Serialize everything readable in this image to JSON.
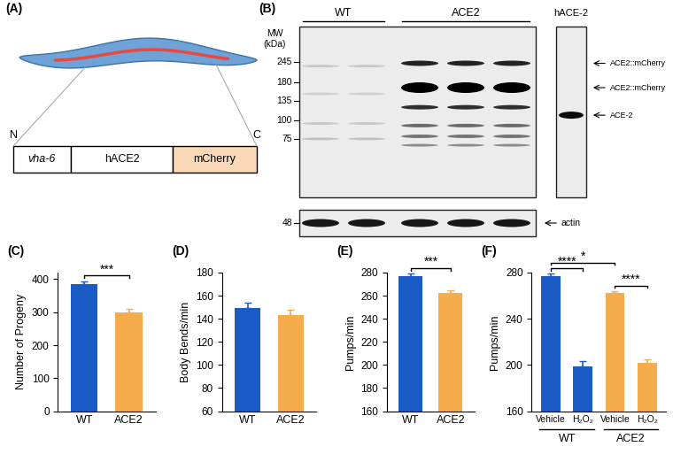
{
  "panel_A": {
    "label": "(A)",
    "construct": {
      "n_terminus": "N",
      "c_terminus": "C",
      "segments": [
        "vha-6",
        "hACE2",
        "mCherry"
      ]
    }
  },
  "panel_B": {
    "label": "(B)",
    "mw_axis_title": "MW\n(kDa)",
    "mw_markers": [
      245,
      180,
      135,
      100,
      75
    ],
    "loading_marker": 48,
    "lane_groups": [
      {
        "name": "WT",
        "lanes": 2
      },
      {
        "name": "ACE2",
        "lanes": 3
      }
    ],
    "reference_lane": "hACE-2",
    "band_labels": [
      "ACE2::mCherry",
      "ACE2::mCherry",
      "ACE-2"
    ],
    "loading_label": "actin"
  },
  "chart_data": [
    {
      "type": "bar",
      "title": "(C)",
      "categories": [
        "WT",
        "ACE2"
      ],
      "values": [
        385,
        298
      ],
      "errors": [
        9,
        11
      ],
      "colors": [
        "#1a5bc6",
        "#f4ac4d"
      ],
      "ylabel": "Number of Progeny",
      "ylim": [
        0,
        420
      ],
      "yticks": [
        0,
        100,
        200,
        300,
        400
      ],
      "annotations": [
        {
          "text": "***",
          "between": [
            0,
            1
          ]
        }
      ]
    },
    {
      "type": "bar",
      "title": "(D)",
      "categories": [
        "WT",
        "ACE2"
      ],
      "values": [
        149,
        143
      ],
      "errors": [
        5,
        5
      ],
      "colors": [
        "#1a5bc6",
        "#f4ac4d"
      ],
      "ylabel": "Body Bends/min",
      "ylim": [
        60,
        180
      ],
      "yticks": [
        60,
        80,
        100,
        120,
        140,
        160,
        180
      ]
    },
    {
      "type": "bar",
      "title": "(E)",
      "categories": [
        "WT",
        "ACE2"
      ],
      "values": [
        277,
        262
      ],
      "errors": [
        2,
        3
      ],
      "colors": [
        "#1a5bc6",
        "#f4ac4d"
      ],
      "ylabel": "Pumps/min",
      "ylim": [
        160,
        280
      ],
      "yticks": [
        160,
        180,
        200,
        220,
        240,
        260,
        280
      ],
      "annotations": [
        {
          "text": "***",
          "between": [
            0,
            1
          ]
        }
      ]
    },
    {
      "type": "bar",
      "title": "(F)",
      "categories": [
        "Vehicle",
        "H₂O₂",
        "Vehicle",
        "H₂O₂"
      ],
      "values": [
        277,
        199,
        262,
        202
      ],
      "errors": [
        2,
        4,
        2,
        3
      ],
      "colors": [
        "#1a5bc6",
        "#1a5bc6",
        "#f4ac4d",
        "#f4ac4d"
      ],
      "ylabel": "Pumps/min",
      "ylim": [
        160,
        280
      ],
      "yticks": [
        160,
        200,
        240,
        280
      ],
      "groups": [
        {
          "name": "WT",
          "size": 2
        },
        {
          "name": "ACE2",
          "size": 2
        }
      ],
      "annotations": [
        {
          "text": "****",
          "between": [
            0,
            1
          ]
        },
        {
          "text": "****",
          "between": [
            2,
            3
          ]
        },
        {
          "text": "*",
          "between": [
            0,
            2
          ]
        }
      ]
    }
  ]
}
